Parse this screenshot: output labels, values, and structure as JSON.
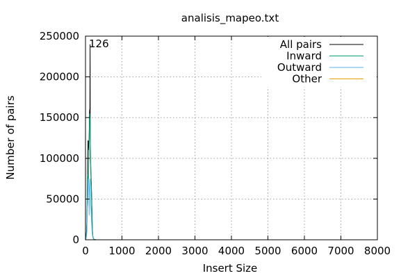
{
  "chart_data": {
    "type": "line",
    "title": "analisis_mapeo.txt",
    "xlabel": "Insert Size",
    "ylabel": "Number of pairs",
    "xlim": [
      0,
      8000
    ],
    "ylim": [
      0,
      250000
    ],
    "xticks": [
      0,
      1000,
      2000,
      3000,
      4000,
      5000,
      6000,
      7000,
      8000
    ],
    "yticks": [
      0,
      50000,
      100000,
      150000,
      200000,
      250000
    ],
    "grid": true,
    "legend_position": "top-right",
    "annotations": [
      {
        "text": "126",
        "x": 126,
        "y": 240000
      }
    ],
    "series": [
      {
        "name": "All pairs",
        "color": "#000000",
        "x": [
          0,
          10,
          20,
          30,
          40,
          50,
          60,
          70,
          80,
          90,
          100,
          110,
          115,
          120,
          126,
          130,
          140,
          150,
          160,
          170,
          180,
          190,
          200,
          220,
          250,
          300,
          8000
        ],
        "y": [
          0,
          2000,
          5000,
          12000,
          25000,
          60000,
          95000,
          122000,
          120000,
          110000,
          125000,
          155000,
          160000,
          150000,
          240000,
          130000,
          100000,
          80000,
          70000,
          50000,
          30000,
          12000,
          5000,
          1000,
          300,
          0,
          0
        ]
      },
      {
        "name": "Inward",
        "color": "#009e73",
        "x": [
          0,
          10,
          20,
          30,
          40,
          50,
          60,
          70,
          80,
          90,
          100,
          110,
          115,
          120,
          126,
          130,
          140,
          150,
          160,
          170,
          180,
          190,
          200,
          220,
          250,
          300,
          8000
        ],
        "y": [
          0,
          1500,
          4000,
          10000,
          22000,
          50000,
          80000,
          75000,
          70000,
          90000,
          120000,
          150000,
          155000,
          145000,
          150000,
          125000,
          95000,
          75000,
          65000,
          45000,
          28000,
          11000,
          4000,
          800,
          200,
          0,
          0
        ]
      },
      {
        "name": "Outward",
        "color": "#56b4e9",
        "x": [
          0,
          20,
          40,
          50,
          60,
          70,
          80,
          90,
          100,
          110,
          126,
          140,
          160,
          180,
          200,
          250,
          8000
        ],
        "y": [
          0,
          2000,
          10000,
          40000,
          45000,
          70000,
          75000,
          72000,
          30000,
          60000,
          75000,
          50000,
          28000,
          10000,
          3000,
          0,
          0
        ]
      },
      {
        "name": "Other",
        "color": "#e69f00",
        "x": [
          0,
          8000
        ],
        "y": [
          0,
          0
        ]
      }
    ]
  }
}
